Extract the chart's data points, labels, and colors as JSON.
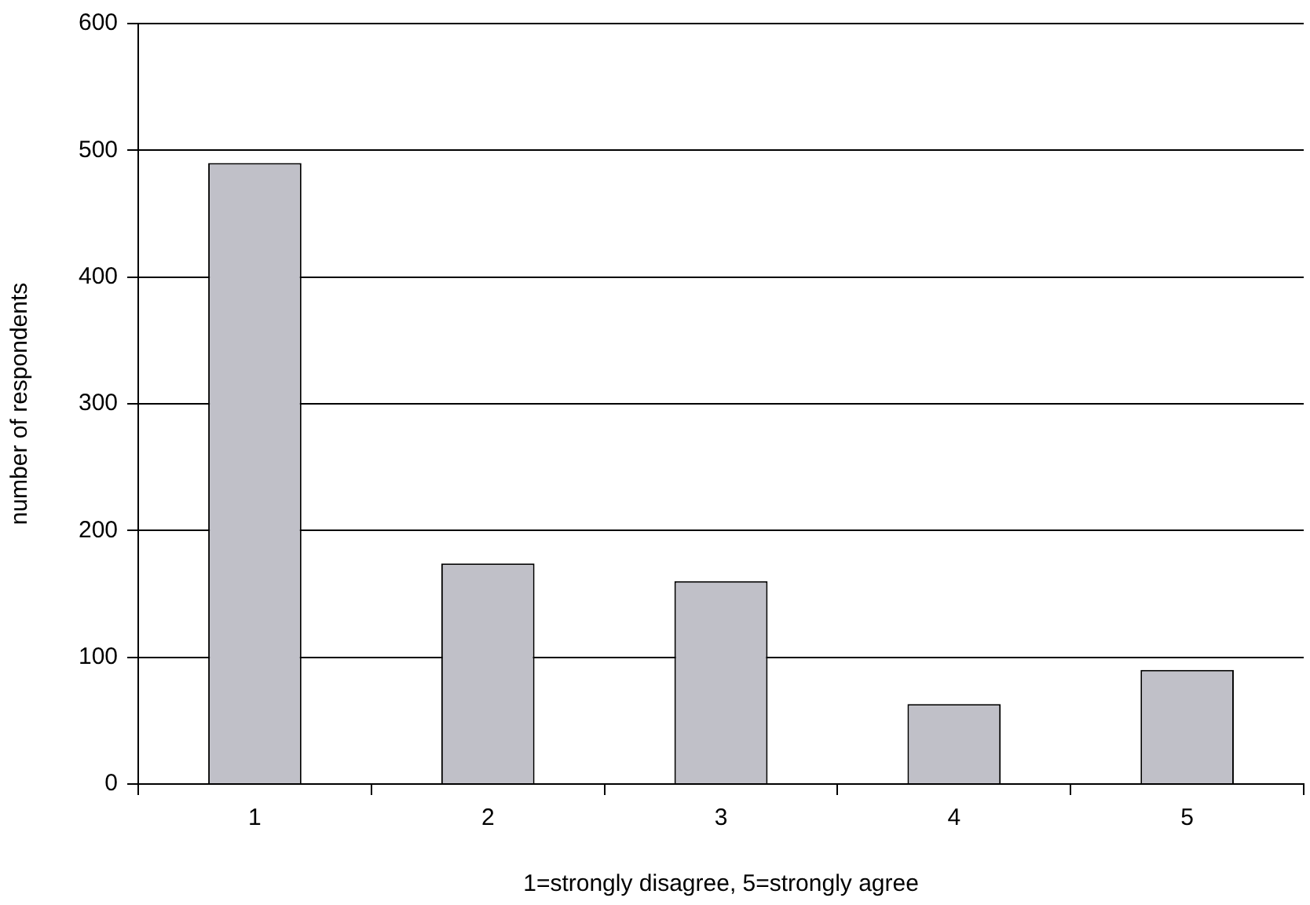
{
  "chart_data": {
    "type": "bar",
    "xlabel": "1=strongly disagree, 5=strongly agree",
    "ylabel": "number of respondents",
    "categories": [
      "1",
      "2",
      "3",
      "4",
      "5"
    ],
    "values": [
      490,
      174,
      160,
      63,
      90
    ],
    "color": "#c0c0c8",
    "ylim": [
      0,
      600
    ],
    "yticks": [
      0,
      100,
      200,
      300,
      400,
      500,
      600
    ],
    "grid": "y",
    "legend": false
  }
}
